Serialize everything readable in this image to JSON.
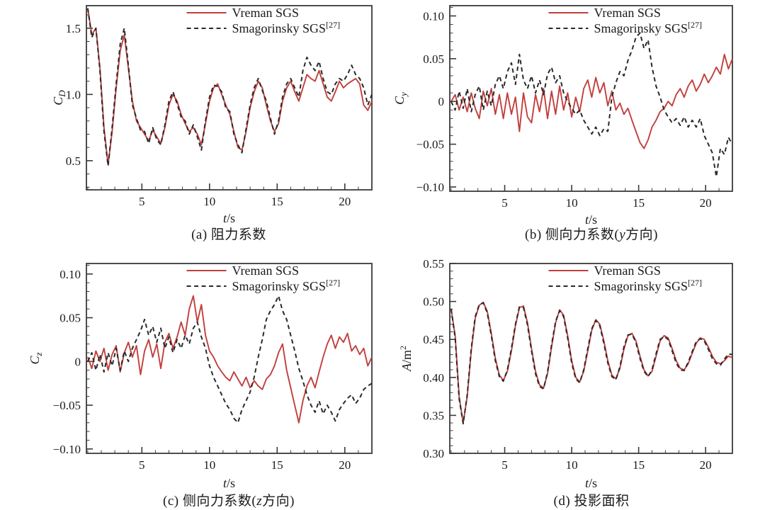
{
  "page": {
    "background": "#ffffff"
  },
  "colors": {
    "vreman": "#c23f3d",
    "smagorinsky": "#2a2a2a",
    "frame": "#3a3a3a",
    "text": "#1a1a1a"
  },
  "chart_data": [
    {
      "id": "a",
      "type": "line",
      "caption": {
        "pre": "(a) 阻力系数",
        "it": "",
        "post": ""
      },
      "xlabel": {
        "it": "t",
        "unit": "/s"
      },
      "ylabel": {
        "it": "C",
        "sub": "D",
        "unit": "",
        "sup": ""
      },
      "xlim": [
        0.9,
        22
      ],
      "ylim": [
        0.28,
        1.67
      ],
      "grid": false,
      "legend_position": "top-right",
      "xticks": {
        "majors": [
          5,
          10,
          15,
          20
        ],
        "labels": [
          "5",
          "10",
          "15",
          "20"
        ],
        "minor_step": 1
      },
      "yticks": {
        "majors": [
          0.5,
          1.0,
          1.5
        ],
        "labels": [
          "0.5",
          "1.0",
          "1.5"
        ],
        "minor_step": 0.1
      },
      "series": [
        {
          "name": "Vreman SGS",
          "sup": "",
          "color_key": "vreman",
          "dash": false,
          "x0": 1,
          "dx": 0.3,
          "values": [
            1.65,
            1.45,
            1.5,
            1.2,
            0.75,
            0.47,
            0.72,
            1.05,
            1.33,
            1.45,
            1.2,
            0.95,
            0.8,
            0.75,
            0.7,
            0.65,
            0.73,
            0.68,
            0.63,
            0.75,
            0.92,
            1.0,
            0.95,
            0.85,
            0.78,
            0.72,
            0.75,
            0.7,
            0.62,
            0.78,
            0.95,
            1.05,
            1.08,
            1.0,
            0.92,
            0.85,
            0.72,
            0.6,
            0.58,
            0.72,
            0.9,
            1.02,
            1.1,
            1.05,
            0.92,
            0.8,
            0.72,
            0.78,
            0.95,
            1.05,
            1.1,
            1.02,
            0.95,
            1.05,
            1.15,
            1.12,
            1.1,
            1.18,
            1.08,
            0.98,
            0.95,
            1.02,
            1.1,
            1.05,
            1.08,
            1.1,
            1.12,
            1.08,
            0.92,
            0.88,
            0.95
          ]
        },
        {
          "name": "Smagorinsky SGS",
          "sup": "[27]",
          "color_key": "smagorinsky",
          "dash": true,
          "x0": 1,
          "dx": 0.3,
          "values": [
            1.65,
            1.43,
            1.5,
            1.18,
            0.72,
            0.46,
            0.75,
            1.08,
            1.38,
            1.5,
            1.22,
            0.92,
            0.82,
            0.73,
            0.72,
            0.63,
            0.75,
            0.66,
            0.62,
            0.77,
            0.95,
            1.02,
            0.93,
            0.83,
            0.8,
            0.7,
            0.77,
            0.68,
            0.58,
            0.8,
            0.98,
            1.07,
            1.06,
            1.02,
            0.9,
            0.87,
            0.7,
            0.62,
            0.56,
            0.74,
            0.92,
            1.05,
            1.12,
            1.03,
            0.95,
            0.82,
            0.7,
            0.8,
            0.98,
            1.08,
            1.12,
            1.05,
            0.98,
            1.18,
            1.28,
            1.22,
            1.18,
            1.25,
            1.12,
            1.02,
            1.0,
            1.08,
            1.12,
            1.1,
            1.15,
            1.22,
            1.15,
            1.12,
            1.05,
            0.92,
            1.0
          ]
        }
      ]
    },
    {
      "id": "b",
      "type": "line",
      "caption": {
        "pre": "(b) 侧向力系数(",
        "it": "y",
        "post": "方向)"
      },
      "xlabel": {
        "it": "t",
        "unit": "/s"
      },
      "ylabel": {
        "it": "C",
        "sub": "y",
        "unit": "",
        "sup": ""
      },
      "xlim": [
        0.9,
        22
      ],
      "ylim": [
        -0.105,
        0.112
      ],
      "grid": false,
      "legend_position": "top-right",
      "xticks": {
        "majors": [
          5,
          10,
          15,
          20
        ],
        "labels": [
          "5",
          "10",
          "15",
          "20"
        ],
        "minor_step": 1
      },
      "yticks": {
        "majors": [
          -0.1,
          -0.05,
          0,
          0.05,
          0.1
        ],
        "labels": [
          "−0.10",
          "−0.05",
          "0",
          "0.05",
          "0.10"
        ],
        "minor_step": 0.01
      },
      "series": [
        {
          "name": "Vreman SGS",
          "sup": "",
          "color_key": "vreman",
          "dash": false,
          "x0": 1,
          "dx": 0.3,
          "values": [
            0.0,
            0.008,
            -0.01,
            0.005,
            -0.012,
            0.01,
            -0.008,
            -0.02,
            0.012,
            -0.005,
            0.015,
            -0.015,
            0.008,
            -0.02,
            0.01,
            -0.015,
            0.005,
            -0.035,
            0.01,
            -0.018,
            -0.025,
            0.008,
            -0.012,
            0.015,
            -0.02,
            0.012,
            -0.015,
            0.018,
            -0.01,
            0.01,
            -0.018,
            0.005,
            -0.012,
            0.015,
            0.025,
            0.005,
            0.028,
            0.01,
            0.022,
            -0.005,
            0.012,
            -0.01,
            -0.002,
            -0.015,
            -0.008,
            -0.022,
            -0.035,
            -0.048,
            -0.055,
            -0.045,
            -0.03,
            -0.022,
            -0.012,
            -0.008,
            0.0,
            -0.005,
            0.008,
            0.015,
            0.005,
            0.018,
            0.025,
            0.012,
            0.02,
            0.032,
            0.022,
            0.03,
            0.04,
            0.032,
            0.055,
            0.038,
            0.05
          ]
        },
        {
          "name": "Smagorinsky SGS",
          "sup": "[27]",
          "color_key": "smagorinsky",
          "dash": true,
          "x0": 1,
          "dx": 0.3,
          "values": [
            0.0,
            -0.01,
            0.012,
            -0.008,
            0.015,
            -0.012,
            0.008,
            0.018,
            -0.01,
            0.012,
            -0.005,
            0.02,
            0.03,
            0.015,
            0.035,
            0.045,
            0.02,
            0.055,
            0.025,
            0.015,
            0.03,
            0.01,
            0.025,
            0.008,
            0.032,
            0.04,
            0.022,
            0.03,
            0.01,
            0.0,
            -0.008,
            -0.015,
            -0.01,
            -0.022,
            -0.03,
            -0.038,
            -0.03,
            -0.04,
            -0.032,
            -0.035,
            0.005,
            0.022,
            0.035,
            0.03,
            0.048,
            0.06,
            0.075,
            0.08,
            0.062,
            0.072,
            0.04,
            0.018,
            0.005,
            -0.01,
            -0.018,
            -0.025,
            -0.02,
            -0.028,
            -0.018,
            -0.03,
            -0.022,
            -0.03,
            -0.02,
            -0.04,
            -0.05,
            -0.06,
            -0.088,
            -0.055,
            -0.062,
            -0.042,
            -0.05
          ]
        }
      ]
    },
    {
      "id": "c",
      "type": "line",
      "caption": {
        "pre": "(c) 侧向力系数(",
        "it": "z",
        "post": "方向)"
      },
      "xlabel": {
        "it": "t",
        "unit": "/s"
      },
      "ylabel": {
        "it": "C",
        "sub": "z",
        "unit": "",
        "sup": ""
      },
      "xlim": [
        0.9,
        22
      ],
      "ylim": [
        -0.105,
        0.112
      ],
      "grid": false,
      "legend_position": "top-right",
      "xticks": {
        "majors": [
          5,
          10,
          15,
          20
        ],
        "labels": [
          "5",
          "10",
          "15",
          "20"
        ],
        "minor_step": 1
      },
      "yticks": {
        "majors": [
          -0.1,
          -0.05,
          0,
          0.05,
          0.1
        ],
        "labels": [
          "−0.10",
          "−0.05",
          "0",
          "0.05",
          "0.10"
        ],
        "minor_step": 0.01
      },
      "series": [
        {
          "name": "Vreman SGS",
          "sup": "",
          "color_key": "vreman",
          "dash": false,
          "x0": 1,
          "dx": 0.3,
          "values": [
            0.005,
            -0.008,
            0.012,
            0.0,
            0.015,
            -0.01,
            0.008,
            0.018,
            -0.012,
            0.01,
            0.022,
            0.005,
            0.018,
            -0.015,
            0.012,
            0.025,
            0.005,
            0.02,
            -0.008,
            0.022,
            0.032,
            0.015,
            0.028,
            0.045,
            0.03,
            0.06,
            0.075,
            0.045,
            0.065,
            0.03,
            0.012,
            0.005,
            -0.005,
            -0.012,
            -0.018,
            -0.022,
            -0.012,
            -0.02,
            -0.028,
            -0.018,
            -0.03,
            -0.022,
            -0.028,
            -0.032,
            -0.02,
            -0.015,
            -0.005,
            0.01,
            0.02,
            -0.01,
            -0.03,
            -0.05,
            -0.07,
            -0.045,
            -0.028,
            -0.018,
            -0.03,
            -0.012,
            0.005,
            0.02,
            0.03,
            0.015,
            0.028,
            0.022,
            0.032,
            0.012,
            0.018,
            0.008,
            0.015,
            -0.005,
            0.005
          ]
        },
        {
          "name": "Smagorinsky SGS",
          "sup": "[27]",
          "color_key": "smagorinsky",
          "dash": true,
          "x0": 1,
          "dx": 0.3,
          "values": [
            0.0,
            0.01,
            -0.01,
            0.008,
            -0.012,
            0.01,
            -0.005,
            0.015,
            -0.01,
            0.012,
            0.0,
            0.015,
            0.025,
            0.035,
            0.048,
            0.03,
            0.04,
            0.022,
            0.038,
            0.015,
            0.028,
            0.01,
            0.025,
            0.015,
            0.03,
            0.02,
            0.038,
            0.045,
            0.028,
            0.015,
            -0.005,
            -0.018,
            -0.028,
            -0.038,
            -0.048,
            -0.055,
            -0.065,
            -0.07,
            -0.055,
            -0.045,
            -0.035,
            -0.018,
            0.005,
            0.025,
            0.048,
            0.058,
            0.065,
            0.075,
            0.058,
            0.048,
            0.03,
            0.012,
            -0.008,
            -0.022,
            -0.038,
            -0.05,
            -0.058,
            -0.045,
            -0.06,
            -0.05,
            -0.058,
            -0.068,
            -0.055,
            -0.048,
            -0.042,
            -0.038,
            -0.048,
            -0.042,
            -0.032,
            -0.028,
            -0.025
          ]
        }
      ]
    },
    {
      "id": "d",
      "type": "line",
      "caption": {
        "pre": "(d) 投影面积",
        "it": "",
        "post": ""
      },
      "xlabel": {
        "it": "t",
        "unit": "/s"
      },
      "ylabel": {
        "it": "A",
        "sub": "",
        "unit": "/m",
        "sup": "2"
      },
      "xlim": [
        0.9,
        22
      ],
      "ylim": [
        0.3,
        0.55
      ],
      "grid": false,
      "legend_position": "top-right",
      "xticks": {
        "majors": [
          5,
          10,
          15,
          20
        ],
        "labels": [
          "5",
          "10",
          "15",
          "20"
        ],
        "minor_step": 1
      },
      "yticks": {
        "majors": [
          0.3,
          0.35,
          0.4,
          0.45,
          0.5,
          0.55
        ],
        "labels": [
          "0.30",
          "0.35",
          "0.40",
          "0.45",
          "0.50",
          "0.55"
        ],
        "minor_step": 0.01
      },
      "series": [
        {
          "name": "Vreman SGS",
          "sup": "",
          "color_key": "vreman",
          "dash": false,
          "x0": 1,
          "dx": 0.3,
          "values": [
            0.49,
            0.455,
            0.375,
            0.34,
            0.375,
            0.435,
            0.478,
            0.495,
            0.499,
            0.487,
            0.458,
            0.425,
            0.403,
            0.396,
            0.408,
            0.435,
            0.468,
            0.492,
            0.494,
            0.472,
            0.438,
            0.408,
            0.39,
            0.386,
            0.405,
            0.44,
            0.472,
            0.489,
            0.482,
            0.455,
            0.422,
            0.4,
            0.394,
            0.408,
            0.435,
            0.462,
            0.476,
            0.47,
            0.448,
            0.422,
            0.403,
            0.398,
            0.412,
            0.437,
            0.455,
            0.458,
            0.448,
            0.428,
            0.41,
            0.402,
            0.408,
            0.428,
            0.448,
            0.455,
            0.452,
            0.438,
            0.422,
            0.412,
            0.41,
            0.418,
            0.432,
            0.445,
            0.452,
            0.45,
            0.44,
            0.428,
            0.42,
            0.418,
            0.422,
            0.428,
            0.426
          ]
        },
        {
          "name": "Smagorinsky SGS",
          "sup": "[27]",
          "color_key": "smagorinsky",
          "dash": true,
          "x0": 1,
          "dx": 0.3,
          "values": [
            0.49,
            0.452,
            0.372,
            0.339,
            0.377,
            0.438,
            0.48,
            0.496,
            0.498,
            0.485,
            0.455,
            0.422,
            0.401,
            0.395,
            0.41,
            0.438,
            0.47,
            0.493,
            0.492,
            0.469,
            0.435,
            0.405,
            0.388,
            0.385,
            0.407,
            0.443,
            0.474,
            0.488,
            0.48,
            0.452,
            0.419,
            0.398,
            0.393,
            0.41,
            0.438,
            0.464,
            0.475,
            0.468,
            0.445,
            0.419,
            0.401,
            0.397,
            0.414,
            0.44,
            0.456,
            0.457,
            0.446,
            0.425,
            0.408,
            0.401,
            0.41,
            0.431,
            0.45,
            0.454,
            0.45,
            0.435,
            0.419,
            0.41,
            0.409,
            0.42,
            0.434,
            0.447,
            0.451,
            0.448,
            0.437,
            0.425,
            0.418,
            0.416,
            0.424,
            0.431,
            0.43
          ]
        }
      ]
    }
  ]
}
